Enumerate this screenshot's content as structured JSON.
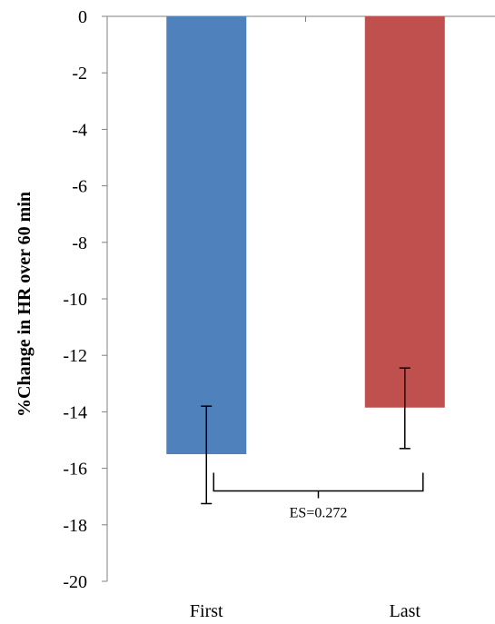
{
  "chart_data": {
    "type": "bar",
    "categories": [
      "First",
      "Last"
    ],
    "values": [
      -15.5,
      -13.85
    ],
    "error_bars": [
      {
        "upper": -13.8,
        "lower": -17.25
      },
      {
        "upper": -12.45,
        "lower": -15.3
      }
    ],
    "colors": [
      "#4F81BD",
      "#C0504D"
    ],
    "ylabel": "%Change in HR over 60 min",
    "xlabel": "",
    "title": "",
    "ylim": [
      -20,
      0
    ],
    "yticks": [
      0,
      -2,
      -4,
      -6,
      -8,
      -10,
      -12,
      -14,
      -16,
      -18,
      -20
    ],
    "ytick_labels": [
      "0",
      "-2",
      "-4",
      "-6",
      "-8",
      "-10",
      "-12",
      "-14",
      "-16",
      "-18",
      "-20"
    ],
    "grid": false,
    "legend": "none",
    "annotations": [
      {
        "text": "ES=0.272",
        "between": [
          "First",
          "Last"
        ],
        "bracket_y": -16.8
      }
    ]
  }
}
